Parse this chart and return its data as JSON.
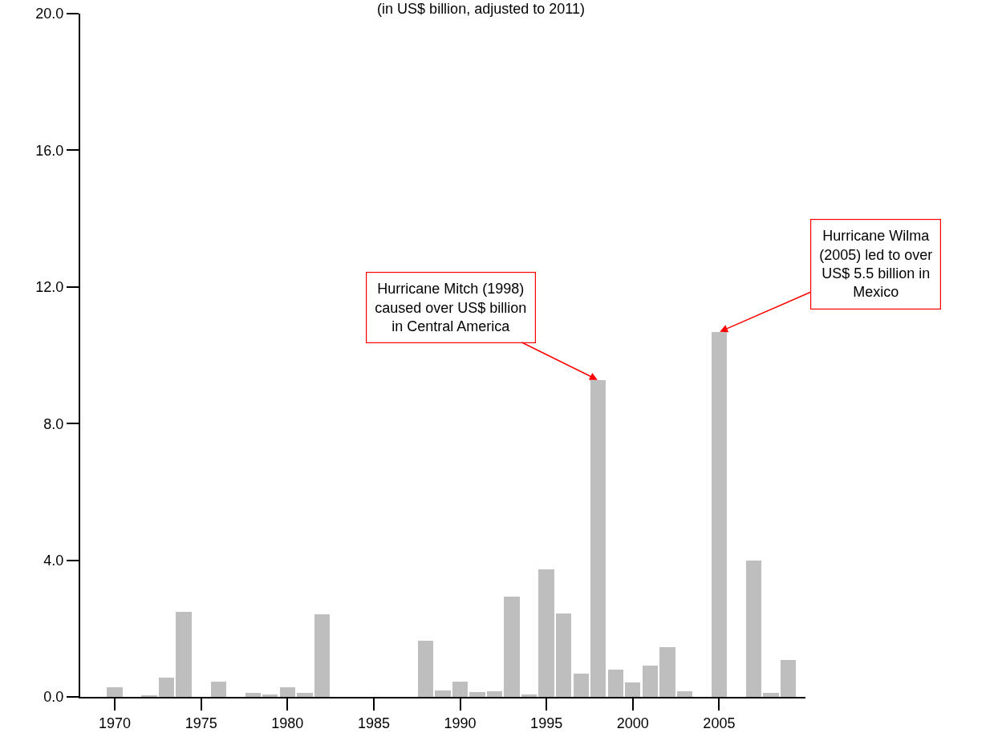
{
  "chart_data": {
    "type": "bar",
    "title": "(in US$ billion, adjusted to 2011)",
    "x": [
      1970,
      1971,
      1972,
      1973,
      1974,
      1975,
      1976,
      1977,
      1978,
      1979,
      1980,
      1981,
      1982,
      1983,
      1984,
      1985,
      1986,
      1987,
      1988,
      1989,
      1990,
      1991,
      1992,
      1993,
      1994,
      1995,
      1996,
      1997,
      1998,
      1999,
      2000,
      2001,
      2002,
      2003,
      2004,
      2005,
      2006,
      2007,
      2008,
      2009
    ],
    "values": [
      0.28,
      0,
      0.05,
      0.56,
      2.49,
      0,
      0.45,
      0,
      0.12,
      0.07,
      0.28,
      0.12,
      2.42,
      0,
      0,
      0,
      0,
      0,
      1.64,
      0.18,
      0.45,
      0.15,
      0.16,
      2.93,
      0.07,
      3.73,
      2.44,
      0.67,
      9.27,
      0.79,
      0.42,
      0.91,
      1.46,
      0.16,
      0,
      10.68,
      0,
      3.99,
      0.12,
      1.08
    ],
    "color": "#bebebe",
    "xlim": [
      1968,
      2010
    ],
    "xticks": [
      1970,
      1975,
      1980,
      1985,
      1990,
      1995,
      2000,
      2005
    ],
    "ylim": [
      0,
      20
    ],
    "yticks": [
      {
        "value": 0,
        "label": "0.0"
      },
      {
        "value": 4,
        "label": "4.0"
      },
      {
        "value": 8,
        "label": "8.0"
      },
      {
        "value": 12,
        "label": "12.0"
      },
      {
        "value": 16,
        "label": "16.0"
      },
      {
        "value": 20,
        "label": "20.0"
      }
    ],
    "grid": false,
    "legend": false,
    "annotations": [
      {
        "text": "Hurricane Mitch (1998)\ncaused over US$ billion\nin Central America",
        "x": 1998,
        "y": 9.27
      },
      {
        "text": "Hurricane Wilma\n(2005) led to over\nUS$ 5.5 billion in\nMexico",
        "x": 2005,
        "y": 10.68
      }
    ]
  }
}
